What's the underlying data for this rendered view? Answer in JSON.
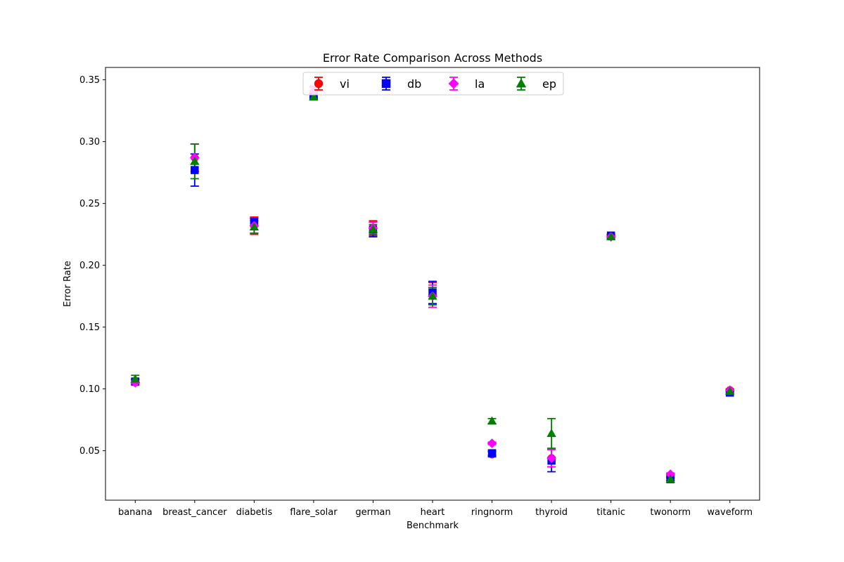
{
  "chart_data": {
    "type": "scatter",
    "title": "Error Rate Comparison Across Methods",
    "xlabel": "Benchmark",
    "ylabel": "Error Rate",
    "ylim": [
      0.01,
      0.36
    ],
    "yticks": [
      0.05,
      0.1,
      0.15,
      0.2,
      0.25,
      0.3,
      0.35
    ],
    "ytick_labels": [
      "0.05",
      "0.10",
      "0.15",
      "0.20",
      "0.25",
      "0.30",
      "0.35"
    ],
    "grid": false,
    "legend_position": "top-center",
    "categories": [
      "banana",
      "breast_cancer",
      "diabetis",
      "flare_solar",
      "german",
      "heart",
      "ringnorm",
      "thyroid",
      "titanic",
      "twonorm",
      "waveform"
    ],
    "series": [
      {
        "name": "vi",
        "color": "#ff0000",
        "marker": "circle",
        "values": [
          0.106,
          0.287,
          0.232,
          0.34,
          0.23,
          0.176,
          0.047,
          0.044,
          0.224,
          0.03,
          0.099
        ],
        "errors": [
          0.002,
          0.011,
          0.007,
          0.004,
          0.006,
          0.01,
          0.002,
          0.007,
          0.001,
          0.001,
          0.001
        ]
      },
      {
        "name": "db",
        "color": "#0000ff",
        "marker": "square",
        "values": [
          0.106,
          0.277,
          0.235,
          0.337,
          0.229,
          0.178,
          0.048,
          0.042,
          0.224,
          0.027,
          0.097
        ],
        "errors": [
          0.002,
          0.013,
          0.003,
          0.002,
          0.006,
          0.009,
          0.002,
          0.009,
          0.001,
          0.001,
          0.001
        ]
      },
      {
        "name": "la",
        "color": "#ff00ff",
        "marker": "diamond",
        "values": [
          0.105,
          0.287,
          0.232,
          0.341,
          0.23,
          0.175,
          0.056,
          0.044,
          0.223,
          0.031,
          0.099
        ],
        "errors": [
          0.002,
          0.011,
          0.006,
          0.004,
          0.005,
          0.009,
          0.001,
          0.007,
          0.001,
          0.001,
          0.001
        ]
      },
      {
        "name": "ep",
        "color": "#008000",
        "marker": "triangle",
        "values": [
          0.108,
          0.284,
          0.231,
          0.336,
          0.229,
          0.175,
          0.074,
          0.064,
          0.223,
          0.027,
          0.098
        ],
        "errors": [
          0.003,
          0.014,
          0.005,
          0.002,
          0.004,
          0.007,
          0.002,
          0.012,
          0.001,
          0.001,
          0.001
        ]
      }
    ]
  }
}
